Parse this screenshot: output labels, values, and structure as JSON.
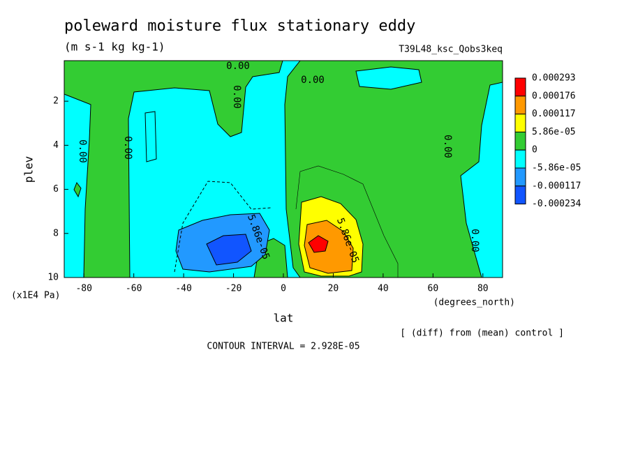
{
  "chart_data": {
    "type": "contour",
    "title": "poleward moisture flux stationary eddy",
    "subtitle": "(m s-1 kg kg-1)",
    "run_label": "T39L48_ksc_Qobs3keq",
    "xlabel": "lat",
    "ylabel": "plev",
    "x_unit_label": "(degrees_north)",
    "y_unit_label": "(x1E4 Pa)",
    "note": "[ (diff) from (mean) control ]",
    "contour_interval": "CONTOUR INTERVAL = 2.928E-05",
    "xlim": [
      -87.9,
      87.9
    ],
    "xticks": [
      -80,
      -60,
      -40,
      -20,
      0,
      20,
      40,
      60,
      80
    ],
    "ylim": [
      10,
      0.16
    ],
    "yticks": [
      2,
      4,
      6,
      8,
      10
    ],
    "levels": [
      0.000293,
      0.000176,
      0.000117,
      {
        "value": 5.86e-05,
        "label": "5.86e-05"
      },
      0,
      {
        "value": -5.86e-05,
        "label": "-5.86e-05"
      },
      -0.000117,
      -0.000234
    ],
    "colors": [
      "#ff0000",
      "#ff9900",
      "#ffff00",
      "#33cc33",
      "#00ffff",
      "#2299ff",
      "#1155ff"
    ],
    "contour_labels": [
      "0.00",
      "0.00",
      "0.00",
      "0.00",
      "0.00",
      "0.00",
      "0.00",
      "5.86e-05",
      "5.86e-05"
    ]
  }
}
